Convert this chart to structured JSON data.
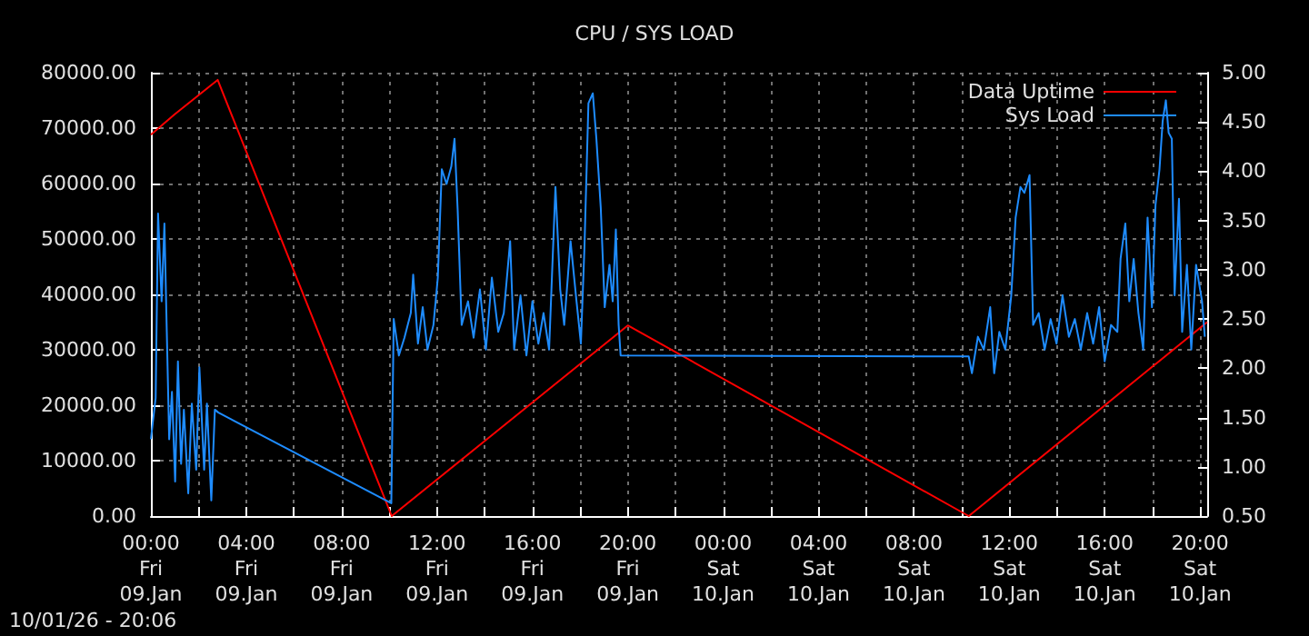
{
  "chart_data": {
    "type": "line",
    "title": "CPU / SYS LOAD",
    "annotations": [
      "10/01/26 - 20:06"
    ],
    "xlim": [
      "--01-09T00:00",
      "--01-10T20:18"
    ],
    "xticks": [
      {
        "value": "--01-09T00:00",
        "label": "00:00\nFri\n09.Jan"
      },
      {
        "value": "--01-09T02:00",
        "label": null
      },
      {
        "value": "--01-09T04:00",
        "label": "04:00\nFri\n09.Jan"
      },
      {
        "value": "--01-09T06:00",
        "label": null
      },
      {
        "value": "--01-09T08:00",
        "label": "08:00\nFri\n09.Jan"
      },
      {
        "value": "--01-09T10:00",
        "label": null
      },
      {
        "value": "--01-09T12:00",
        "label": "12:00\nFri\n09.Jan"
      },
      {
        "value": "--01-09T14:00",
        "label": null
      },
      {
        "value": "--01-09T16:00",
        "label": "16:00\nFri\n09.Jan"
      },
      {
        "value": "--01-09T18:00",
        "label": null
      },
      {
        "value": "--01-09T20:00",
        "label": "20:00\nFri\n09.Jan"
      },
      {
        "value": "--01-09T22:00",
        "label": null
      },
      {
        "value": "--01-10T00:00",
        "label": "00:00\nSat\n10.Jan"
      },
      {
        "value": "--01-10T02:00",
        "label": null
      },
      {
        "value": "--01-10T04:00",
        "label": "04:00\nSat\n10.Jan"
      },
      {
        "value": "--01-10T06:00",
        "label": null
      },
      {
        "value": "--01-10T08:00",
        "label": "08:00\nSat\n10.Jan"
      },
      {
        "value": "--01-10T10:00",
        "label": null
      },
      {
        "value": "--01-10T12:00",
        "label": "12:00\nSat\n10.Jan"
      },
      {
        "value": "--01-10T14:00",
        "label": null
      },
      {
        "value": "--01-10T16:00",
        "label": "16:00\nSat\n10.Jan"
      },
      {
        "value": "--01-10T18:00",
        "label": null
      },
      {
        "value": "--01-10T20:00",
        "label": "20:00\nSat\n10.Jan"
      }
    ],
    "ylim": [
      0,
      80000
    ],
    "yticks": [
      {
        "value": 0,
        "label": "0.00"
      },
      {
        "value": 10000,
        "label": "10000.00"
      },
      {
        "value": 20000,
        "label": "20000.00"
      },
      {
        "value": 30000,
        "label": "30000.00"
      },
      {
        "value": 40000,
        "label": "40000.00"
      },
      {
        "value": 50000,
        "label": "50000.00"
      },
      {
        "value": 60000,
        "label": "60000.00"
      },
      {
        "value": 70000,
        "label": "70000.00"
      },
      {
        "value": 80000,
        "label": "80000.00"
      }
    ],
    "y2lim": [
      0.5,
      5
    ],
    "y2ticks": [
      {
        "value": 0.5,
        "label": "0.50"
      },
      {
        "value": 1,
        "label": "1.00"
      },
      {
        "value": 1.5,
        "label": "1.50"
      },
      {
        "value": 2,
        "label": "2.00"
      },
      {
        "value": 2.5,
        "label": "2.50"
      },
      {
        "value": 3,
        "label": "3.00"
      },
      {
        "value": 3.5,
        "label": "3.50"
      },
      {
        "value": 4,
        "label": "4.00"
      },
      {
        "value": 4.5,
        "label": "4.50"
      },
      {
        "value": 5,
        "label": "5.00"
      }
    ],
    "grid": true,
    "legend": "top right",
    "series": [
      {
        "name": "Data Uptime",
        "color": "#ff0000",
        "x": [
          "--01-09T00:00",
          "--01-09T01:00",
          "--01-09T02:48",
          "--01-09T10:06",
          "--01-09T20:00",
          "--01-10T10:18",
          "--01-10T20:18"
        ],
        "values": [
          68800,
          72500,
          78700,
          0,
          34400,
          0,
          35000
        ]
      },
      {
        "name": "Sys Load",
        "color": "#1e8cff",
        "axis": "y2",
        "x": [
          "--01-09T00:00",
          "--01-09T00:12",
          "--01-09T00:18",
          "--01-09T00:27",
          "--01-09T00:34",
          "--01-09T00:40",
          "--01-09T00:46",
          "--01-09T00:53",
          "--01-09T01:01",
          "--01-09T01:08",
          "--01-09T01:16",
          "--01-09T01:23",
          "--01-09T01:34",
          "--01-09T01:43",
          "--01-09T01:54",
          "--01-09T02:02",
          "--01-09T02:14",
          "--01-09T02:21",
          "--01-09T02:32",
          "--01-09T02:41",
          "--01-09T02:50",
          "--01-09T10:05",
          "--01-09T10:08",
          "--01-09T10:11",
          "--01-09T10:24",
          "--01-09T10:38",
          "--01-09T10:54",
          "--01-09T11:00",
          "--01-09T11:12",
          "--01-09T11:24",
          "--01-09T11:36",
          "--01-09T11:51",
          "--01-09T12:02",
          "--01-09T12:12",
          "--01-09T12:24",
          "--01-09T12:36",
          "--01-09T12:44",
          "--01-09T12:52",
          "--01-09T13:02",
          "--01-09T13:18",
          "--01-09T13:32",
          "--01-09T13:48",
          "--01-09T14:03",
          "--01-09T14:18",
          "--01-09T14:34",
          "--01-09T14:48",
          "--01-09T15:04",
          "--01-09T15:14",
          "--01-09T15:30",
          "--01-09T15:45",
          "--01-09T16:00",
          "--01-09T16:15",
          "--01-09T16:28",
          "--01-09T16:42",
          "--01-09T16:58",
          "--01-09T17:10",
          "--01-09T17:20",
          "--01-09T17:36",
          "--01-09T17:51",
          "--01-09T18:02",
          "--01-09T18:11",
          "--01-09T18:21",
          "--01-09T18:32",
          "--01-09T18:41",
          "--01-09T18:52",
          "--01-09T19:02",
          "--01-09T19:14",
          "--01-09T19:22",
          "--01-09T19:30",
          "--01-09T19:37",
          "--01-09T19:42",
          "--01-10T10:18",
          "--01-10T10:26",
          "--01-10T10:41",
          "--01-10T10:56",
          "--01-10T11:12",
          "--01-10T11:22",
          "--01-10T11:35",
          "--01-10T11:50",
          "--01-10T12:05",
          "--01-10T12:16",
          "--01-10T12:28",
          "--01-10T12:38",
          "--01-10T12:51",
          "--01-10T13:00",
          "--01-10T13:14",
          "--01-10T13:29",
          "--01-10T13:44",
          "--01-10T13:59",
          "--01-10T14:14",
          "--01-10T14:30",
          "--01-10T14:45",
          "--01-10T15:00",
          "--01-10T15:16",
          "--01-10T15:31",
          "--01-10T15:46",
          "--01-10T16:00",
          "--01-10T16:16",
          "--01-10T16:32",
          "--01-10T16:40",
          "--01-10T16:52",
          "--01-10T17:02",
          "--01-10T17:13",
          "--01-10T17:25",
          "--01-10T17:37",
          "--01-10T17:48",
          "--01-10T17:59",
          "--01-10T18:08",
          "--01-10T18:18",
          "--01-10T18:26",
          "--01-10T18:34",
          "--01-10T18:41",
          "--01-10T18:49",
          "--01-10T18:56",
          "--01-10T19:07",
          "--01-10T19:15",
          "--01-10T19:27",
          "--01-10T19:38",
          "--01-10T19:50",
          "--01-10T20:05",
          "--01-10T20:12"
        ],
        "values": [
          1.28,
          1.7,
          3.57,
          2.68,
          3.47,
          2.37,
          1.28,
          1.76,
          0.85,
          2.07,
          1.03,
          1.58,
          0.73,
          1.64,
          0.97,
          2.01,
          0.97,
          1.64,
          0.66,
          1.58,
          1.55,
          0.63,
          1.58,
          2.5,
          2.13,
          2.31,
          2.56,
          2.95,
          2.25,
          2.62,
          2.19,
          2.44,
          2.92,
          4.02,
          3.87,
          4.05,
          4.33,
          3.6,
          2.44,
          2.68,
          2.31,
          2.8,
          2.19,
          2.92,
          2.37,
          2.56,
          3.29,
          2.19,
          2.74,
          2.13,
          2.68,
          2.25,
          2.56,
          2.19,
          3.84,
          2.8,
          2.44,
          3.29,
          2.68,
          2.25,
          3.23,
          4.69,
          4.79,
          4.33,
          3.63,
          2.62,
          3.05,
          2.68,
          3.41,
          2.44,
          2.13,
          2.12,
          1.95,
          2.32,
          2.19,
          2.62,
          1.95,
          2.37,
          2.19,
          2.74,
          3.53,
          3.84,
          3.78,
          3.96,
          2.44,
          2.56,
          2.19,
          2.5,
          2.25,
          2.74,
          2.32,
          2.5,
          2.19,
          2.56,
          2.25,
          2.62,
          2.07,
          2.44,
          2.37,
          3.11,
          3.47,
          2.68,
          3.11,
          2.56,
          2.19,
          3.53,
          2.62,
          3.66,
          4.02,
          4.51,
          4.72,
          4.39,
          4.33,
          2.74,
          3.72,
          2.37,
          3.05,
          2.19,
          3.05,
          2.68,
          2.32
        ]
      }
    ]
  }
}
